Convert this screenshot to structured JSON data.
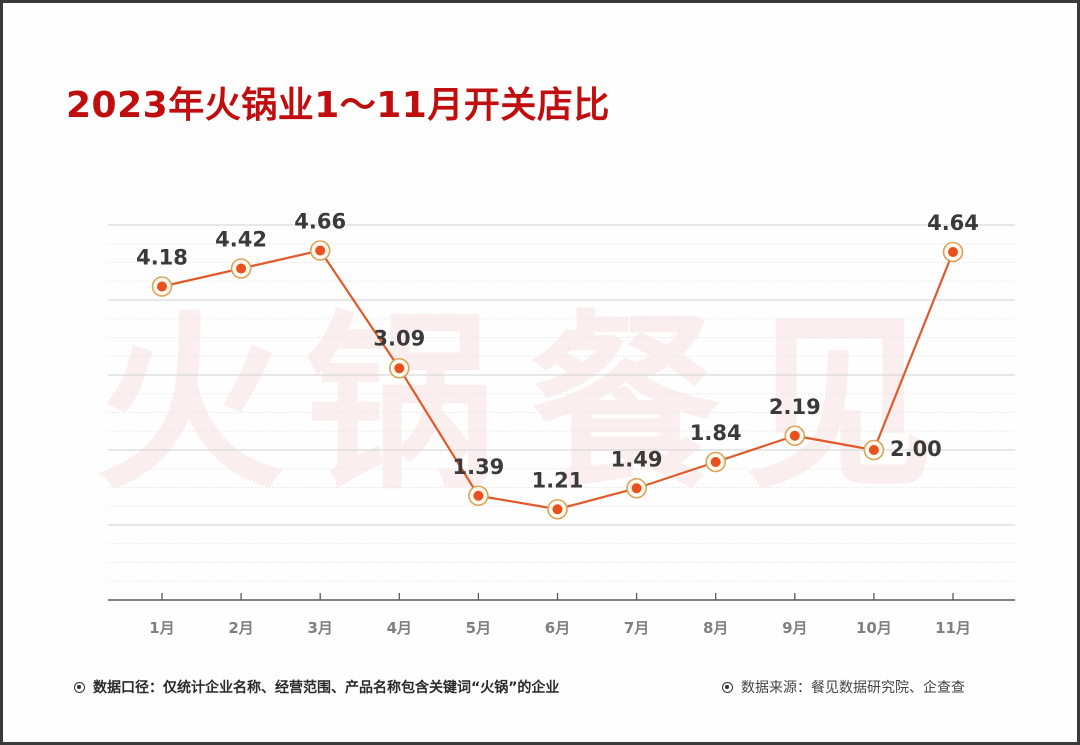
{
  "title": "2023年火锅业1～11月开关店比",
  "watermark": "火锅餐见",
  "colors": {
    "title": "#c00d0d",
    "line": "#e05a2b",
    "marker_fill": "#e8501e",
    "marker_ring": "#d9a35a",
    "marker_ring_fill": "#fff8ec",
    "gridline": "#d9d9d9",
    "axis": "#595959",
    "label": "#3a3a3a",
    "tick_label": "#7f7f7f",
    "watermark": "#fbeeee"
  },
  "chart_data": {
    "type": "line",
    "title": "2023年火锅业1～11月开关店比",
    "categories": [
      "1月",
      "2月",
      "3月",
      "4月",
      "5月",
      "6月",
      "7月",
      "8月",
      "9月",
      "10月",
      "11月"
    ],
    "series": [
      {
        "name": "开关店比",
        "values": [
          4.18,
          4.42,
          4.66,
          3.09,
          1.39,
          1.21,
          1.49,
          1.84,
          2.19,
          2.0,
          4.64
        ]
      }
    ],
    "data_labels": [
      "4.18",
      "4.42",
      "4.66",
      "3.09",
      "1.39",
      "1.21",
      "1.49",
      "1.84",
      "2.19",
      "2.00",
      "4.64"
    ],
    "xlabel": "",
    "ylabel": "",
    "ylim": [
      0,
      5
    ],
    "y_axis_visible": false,
    "grid": true,
    "legend": "none"
  },
  "footnotes": {
    "scope": "数据口径：仅统计企业名称、经营范围、产品名称包含关键词“火锅”的企业",
    "source": "数据来源：餐见数据研究院、企查查"
  }
}
